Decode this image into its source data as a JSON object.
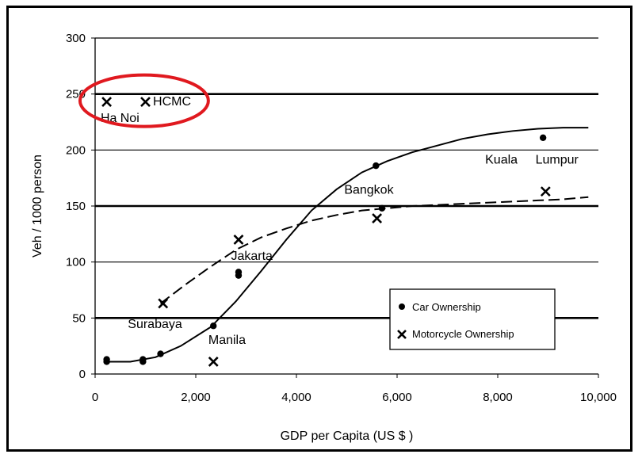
{
  "chart_data": {
    "type": "scatter",
    "xlabel": "GDP per Capita (US $ )",
    "ylabel": "Veh / 1000 person",
    "xlim": [
      0,
      10000
    ],
    "ylim": [
      0,
      300
    ],
    "xticks": [
      0,
      2000,
      4000,
      6000,
      8000,
      10000
    ],
    "xtick_labels": [
      "0",
      "2,000",
      "4,000",
      "6,000",
      "8,000",
      "10,000"
    ],
    "yticks": [
      0,
      50,
      100,
      150,
      200,
      250,
      300
    ],
    "ytick_labels": [
      "0",
      "50",
      "100",
      "150",
      "200",
      "250",
      "300"
    ],
    "grid": "horizontal",
    "legend_position": "bottom-right",
    "series": [
      {
        "name": "Car Ownership",
        "marker": "dot",
        "points": [
          {
            "x": 230,
            "y": 13
          },
          {
            "x": 230,
            "y": 11
          },
          {
            "x": 950,
            "y": 13
          },
          {
            "x": 950,
            "y": 11
          },
          {
            "x": 1300,
            "y": 18
          },
          {
            "x": 2350,
            "y": 43
          },
          {
            "x": 2850,
            "y": 91
          },
          {
            "x": 2850,
            "y": 88
          },
          {
            "x": 5580,
            "y": 186
          },
          {
            "x": 5700,
            "y": 148
          },
          {
            "x": 8900,
            "y": 211
          }
        ]
      },
      {
        "name": "Motorcycle Ownership",
        "marker": "x",
        "points": [
          {
            "x": 230,
            "y": 243
          },
          {
            "x": 1000,
            "y": 243
          },
          {
            "x": 1350,
            "y": 63
          },
          {
            "x": 2350,
            "y": 11
          },
          {
            "x": 2850,
            "y": 120
          },
          {
            "x": 5600,
            "y": 139
          },
          {
            "x": 8950,
            "y": 163
          }
        ]
      }
    ],
    "trend_lines": [
      {
        "style": "solid",
        "x": [
          200,
          700,
          1200,
          1700,
          2300,
          2800,
          3300,
          3800,
          4300,
          4800,
          5300,
          5800,
          6300,
          6800,
          7300,
          7800,
          8300,
          8800,
          9300,
          9800
        ],
        "y": [
          11,
          11,
          15,
          25,
          42,
          65,
          92,
          120,
          146,
          165,
          180,
          190,
          198,
          204,
          210,
          214,
          217,
          219,
          220,
          220
        ]
      },
      {
        "style": "dashed",
        "x": [
          1300,
          1800,
          2300,
          2800,
          3300,
          3800,
          4300,
          4800,
          5300,
          5800,
          6300,
          6800,
          7300,
          7800,
          8300,
          8800,
          9300,
          9800
        ],
        "y": [
          63,
          80,
          96,
          111,
          122,
          130,
          137,
          142,
          146,
          148,
          150,
          151,
          152,
          153,
          154,
          155,
          156,
          158
        ]
      }
    ],
    "annotations": [
      {
        "text": "Ha",
        "x": 110,
        "y": 225
      },
      {
        "text": "Noi",
        "x": 500,
        "y": 225
      },
      {
        "text": "HCMC",
        "x": 1150,
        "y": 240
      },
      {
        "text": "Bangkok",
        "x": 4950,
        "y": 161
      },
      {
        "text": "Kuala",
        "x": 7750,
        "y": 188
      },
      {
        "text": "Lumpur",
        "x": 8750,
        "y": 188
      },
      {
        "text": "Jakarta",
        "x": 2700,
        "y": 102
      },
      {
        "text": "Surabaya",
        "x": 650,
        "y": 41
      },
      {
        "text": "Manila",
        "x": 2250,
        "y": 27
      }
    ],
    "highlight": {
      "shape": "ellipse",
      "color": "#e0191f",
      "x_range": [
        -300,
        2250
      ],
      "y_range": [
        221,
        267
      ]
    }
  }
}
